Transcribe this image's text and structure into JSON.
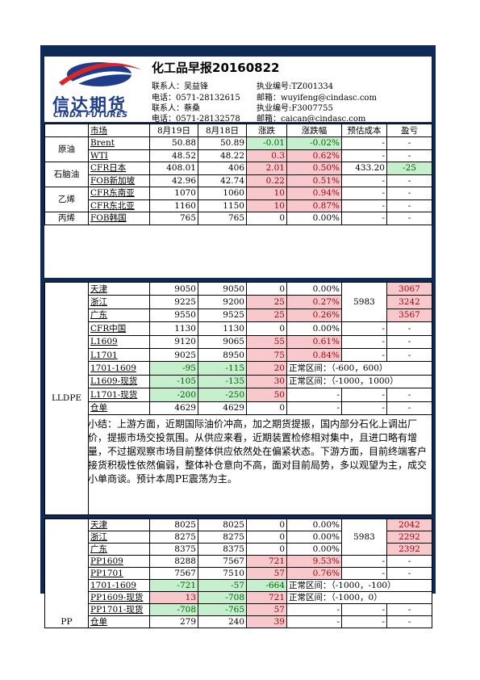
{
  "header": {
    "title": "化工品早报20160822",
    "logo_cn": "信达期货",
    "logo_en": "CINDA FUTURES",
    "contacts": [
      {
        "name": "联系人：吴益锋",
        "license": "执业编号:TZ001334",
        "phone": "电话：0571-28132615",
        "email": "邮箱：wuyifeng@cindasc.com"
      },
      {
        "name": "联系人：蔡桑",
        "license": "执业编号:F3007755",
        "phone": "电话：0571-28132578",
        "email": "邮箱：caican@cindasc.com"
      }
    ]
  },
  "columns": [
    "市场",
    "8月19日",
    "8月18日",
    "涨跌",
    "涨跌幅",
    "预估成本",
    "盈亏"
  ],
  "table1": [
    {
      "group": "原油",
      "rows": [
        {
          "m": "Brent",
          "d19": "50.88",
          "d18": "50.89",
          "chg": "-0.01",
          "pct": "-0.02%",
          "cost": "-",
          "pl": "-",
          "chgStyle": "grn",
          "pctStyle": "grn"
        },
        {
          "m": "WTI",
          "d19": "48.52",
          "d18": "48.22",
          "chg": "0.3",
          "pct": "0.62%",
          "cost": "-",
          "pl": "-",
          "chgStyle": "red",
          "pctStyle": "red"
        }
      ]
    },
    {
      "group": "石脑油",
      "rows": [
        {
          "m": "CFR日本",
          "d19": "408.01",
          "d18": "406",
          "chg": "2.01",
          "pct": "0.50%",
          "cost": "433.20",
          "pl": "-25",
          "chgStyle": "red",
          "pctStyle": "red",
          "plStyle": "grn"
        },
        {
          "m": "FOB新加坡",
          "d19": "42.96",
          "d18": "42.74",
          "chg": "0.22",
          "pct": "0.51%",
          "cost": "-",
          "pl": "-",
          "chgStyle": "red",
          "pctStyle": "red"
        }
      ]
    },
    {
      "group": "乙烯",
      "rows": [
        {
          "m": "CFR东南亚",
          "d19": "1070",
          "d18": "1060",
          "chg": "10",
          "pct": "0.94%",
          "cost": "-",
          "pl": "-",
          "chgStyle": "red",
          "pctStyle": "red"
        },
        {
          "m": "CFR东北亚",
          "d19": "1160",
          "d18": "1150",
          "chg": "10",
          "pct": "0.87%",
          "cost": "-",
          "pl": "-",
          "chgStyle": "red",
          "pctStyle": "red"
        }
      ]
    },
    {
      "group": "丙烯",
      "rows": [
        {
          "m": "FOB韩国",
          "d19": "765",
          "d18": "765",
          "chg": "0",
          "pct": "0.00%",
          "cost": "-",
          "pl": "-"
        }
      ]
    }
  ],
  "lldpe": {
    "group": "LLDPE",
    "rows": [
      {
        "m": "天津",
        "d19": "9050",
        "d18": "9050",
        "chg": "0",
        "pct": "0.00%",
        "pl": "3067",
        "plStyle": "red"
      },
      {
        "m": "浙江",
        "d19": "9225",
        "d18": "9200",
        "chg": "25",
        "pct": "0.27%",
        "pl": "3242",
        "chgStyle": "red",
        "pctStyle": "red",
        "plStyle": "red"
      },
      {
        "m": "广东",
        "d19": "9550",
        "d18": "9525",
        "chg": "25",
        "pct": "0.26%",
        "pl": "3567",
        "chgStyle": "red",
        "pctStyle": "red",
        "plStyle": "red"
      },
      {
        "m": "CFR中国",
        "d19": "1130",
        "d18": "1130",
        "chg": "0",
        "pct": "0.00%",
        "cost": "-",
        "pl": "-"
      },
      {
        "m": "L1609",
        "d19": "9120",
        "d18": "9065",
        "chg": "55",
        "pct": "0.61%",
        "cost": "-",
        "pl": "-",
        "chgStyle": "red",
        "pctStyle": "red"
      },
      {
        "m": "L1701",
        "d19": "9025",
        "d18": "8950",
        "chg": "75",
        "pct": "0.84%",
        "cost": "-",
        "pl": "-",
        "chgStyle": "red",
        "pctStyle": "red"
      },
      {
        "m": "1701-1609",
        "d19": "-95",
        "d18": "-115",
        "chg": "20",
        "range": "正常区间：（-600，600）",
        "d19Style": "grn",
        "d18Style": "grn",
        "chgStyle": "red"
      },
      {
        "m": "L1609-现货",
        "d19": "-105",
        "d18": "-135",
        "chg": "30",
        "range": "正常区间：（-1000，1000）",
        "d19Style": "grn",
        "d18Style": "grn",
        "chgStyle": "red"
      },
      {
        "m": "L1701-现货",
        "d19": "-200",
        "d18": "-250",
        "chg": "50",
        "pct": "-",
        "cost": "-",
        "pl": "-",
        "d19Style": "grn",
        "d18Style": "grn",
        "chgStyle": "red"
      },
      {
        "m": "仓单",
        "d19": "4629",
        "d18": "4629",
        "chg": "0",
        "pct": "-",
        "cost": "-",
        "pl": "-"
      }
    ],
    "cost": "5983",
    "summary": "小结：上游方面，近期国际油价冲高，加之期货提振，国内部分石化上调出厂价，提振市场交投氛围。从供应来看，近期装置检修相对集中，且进口略有增量，不过据观察市场目前整体供应依然处在偏紧状态。下游方面，目前终端客户接货积极性依然偏弱，整体补仓意向不高，面对目前局势，多以观望为主，成交小单商谈。预计本周PE震荡为主。"
  },
  "pp": {
    "group": "PP",
    "rows": [
      {
        "m": "天津",
        "d19": "8025",
        "d18": "8025",
        "chg": "0",
        "pct": "0.00%",
        "pl": "2042",
        "plStyle": "red"
      },
      {
        "m": "浙江",
        "d19": "8275",
        "d18": "8275",
        "chg": "0",
        "pct": "0.00%",
        "pl": "2292",
        "plStyle": "red"
      },
      {
        "m": "广东",
        "d19": "8375",
        "d18": "8375",
        "chg": "0",
        "pct": "0.00%",
        "pl": "2392",
        "plStyle": "red"
      },
      {
        "m": "PP1609",
        "d19": "8288",
        "d18": "7567",
        "chg": "721",
        "pct": "9.53%",
        "cost": "-",
        "pl": "-",
        "chgStyle": "red",
        "pctStyle": "red"
      },
      {
        "m": "PP1701",
        "d19": "7567",
        "d18": "7510",
        "chg": "57",
        "pct": "0.76%",
        "cost": "-",
        "pl": "-",
        "chgStyle": "red",
        "pctStyle": "red"
      },
      {
        "m": "1701-1609",
        "d19": "-721",
        "d18": "-57",
        "chg": "-664",
        "range": "正常区间：（-1000，-100）",
        "d19Style": "grn",
        "d18Style": "grn",
        "chgStyle": "grn"
      },
      {
        "m": "PP1609-现货",
        "d19": "13",
        "d18": "-708",
        "chg": "721",
        "range": "正常区间：（-1000，0）",
        "d19Style": "red",
        "d18Style": "grn",
        "chgStyle": "red"
      },
      {
        "m": "PP1701-现货",
        "d19": "-708",
        "d18": "-765",
        "chg": "57",
        "pct": "-",
        "cost": "-",
        "pl": "-",
        "d19Style": "grn",
        "d18Style": "grn",
        "chgStyle": "red"
      },
      {
        "m": "仓单",
        "d19": "279",
        "d18": "240",
        "chg": "39",
        "pct": "-",
        "cost": "-",
        "pl": "-",
        "chgStyle": "red"
      }
    ],
    "cost": "5983"
  }
}
